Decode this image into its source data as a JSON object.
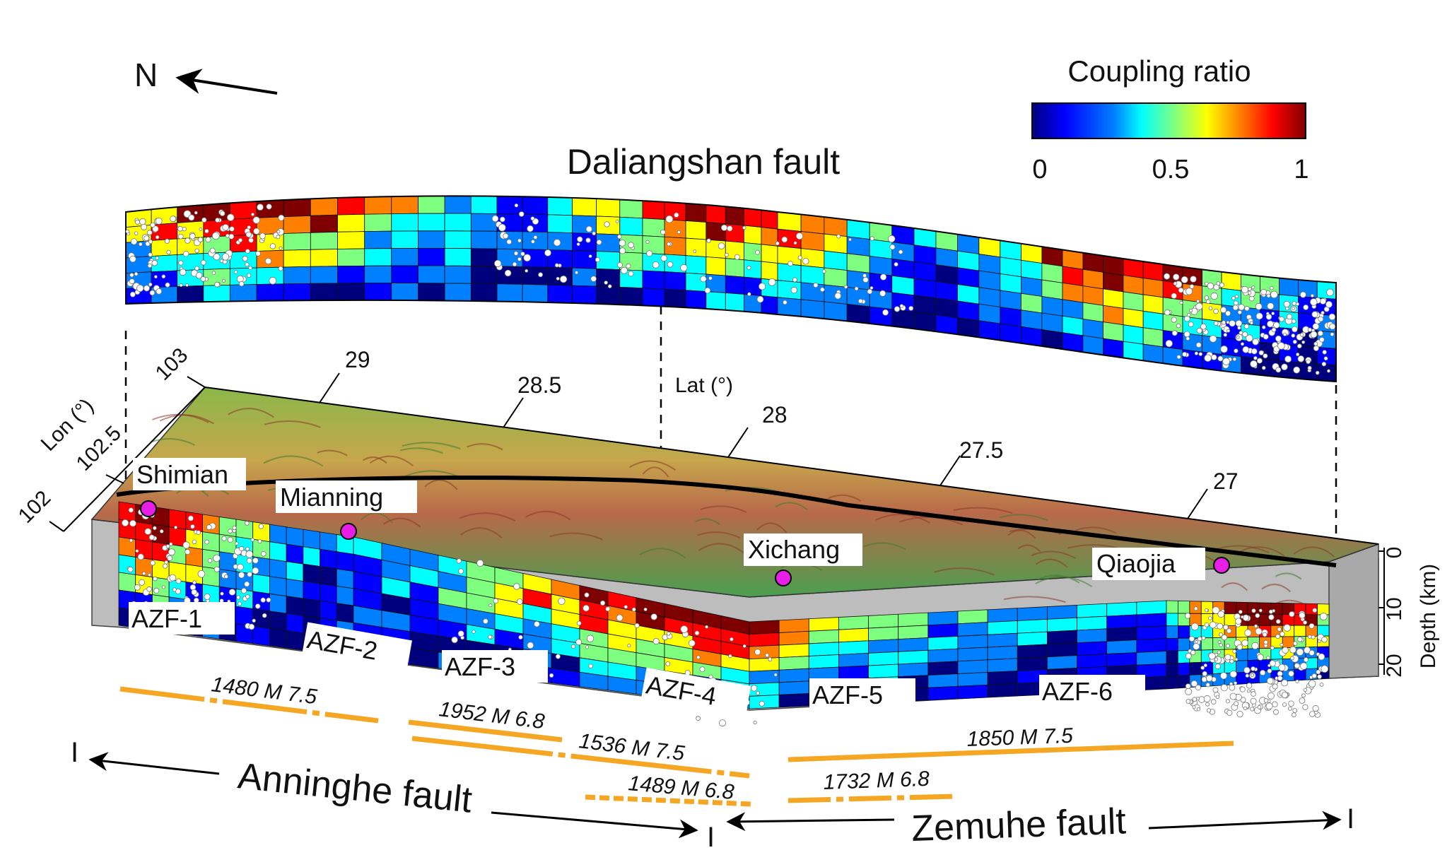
{
  "north": {
    "label": "N"
  },
  "colorbar": {
    "title": "Coupling ratio",
    "ticks": [
      "0",
      "0.5",
      "1"
    ],
    "colors": [
      "#00007f",
      "#0000ff",
      "#007fff",
      "#00ffff",
      "#7fff7f",
      "#ffff00",
      "#ff7f00",
      "#ff0000",
      "#7f0000"
    ]
  },
  "daliangshan": {
    "title": "Daliangshan fault"
  },
  "axes": {
    "lat_title": "Lat (°)",
    "lon_title": "Lon (°)",
    "lat_ticks": [
      "29",
      "28.5",
      "28",
      "27.5",
      "27"
    ],
    "lon_ticks": [
      "103",
      "102.5",
      "102"
    ],
    "depth_title": "Depth (km)",
    "depth_ticks": [
      "0",
      "10",
      "20"
    ]
  },
  "cities": [
    "Shimian",
    "Mianning",
    "Xichang",
    "Qiaojia"
  ],
  "segments": [
    "AZF-1",
    "AZF-2",
    "AZF-3",
    "AZF-4",
    "AZF-5",
    "AZF-6"
  ],
  "ruptures": [
    "1480  M 7.5",
    "1952  M 6.8",
    "1536  M 7.5",
    "1489  M 6.8",
    "1850  M 7.5",
    "1732  M 6.8"
  ],
  "faults": {
    "anninghe": "Anninghe fault",
    "zemuhe": "Zemuhe fault",
    "end_mark": "I"
  },
  "colors": {
    "city_marker": "#e61ee6",
    "rupture": "#f5a623",
    "fault_trace": "#000000",
    "side_wall": "#bdbdbd"
  }
}
